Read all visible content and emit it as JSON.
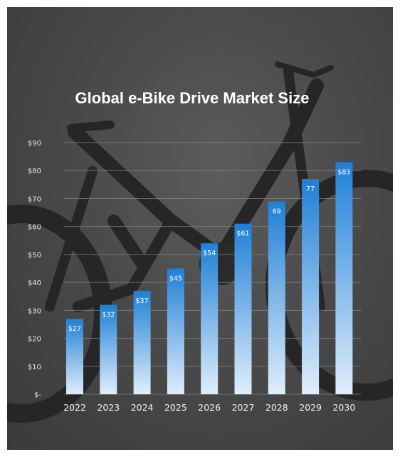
{
  "chart_data": {
    "type": "bar",
    "title": "Global e-Bike Drive Market Size",
    "xlabel": "",
    "ylabel": "",
    "categories": [
      "2022",
      "2023",
      "2024",
      "2025",
      "2026",
      "2027",
      "2028",
      "2029",
      "2030"
    ],
    "values": [
      27,
      32,
      37,
      45,
      54,
      61,
      69,
      77,
      83
    ],
    "data_labels": [
      "$27",
      "$32",
      "$37",
      "$45",
      "$54",
      "$61",
      "69",
      "77",
      "$83"
    ],
    "y_ticks": [
      0,
      10,
      20,
      30,
      40,
      50,
      60,
      70,
      80,
      90
    ],
    "y_tick_labels": [
      "$-",
      "$10",
      "$20",
      "$30",
      "$40",
      "$50",
      "$60",
      "$70",
      "$80",
      "$90"
    ],
    "ylim": [
      0,
      90
    ],
    "grid": true,
    "legend": "none",
    "colors": {
      "bar_top": "#1f7fd6",
      "bar_bottom": "#dfeefb",
      "grid": "#8a8a8a",
      "background": "#4a4a4a"
    }
  }
}
